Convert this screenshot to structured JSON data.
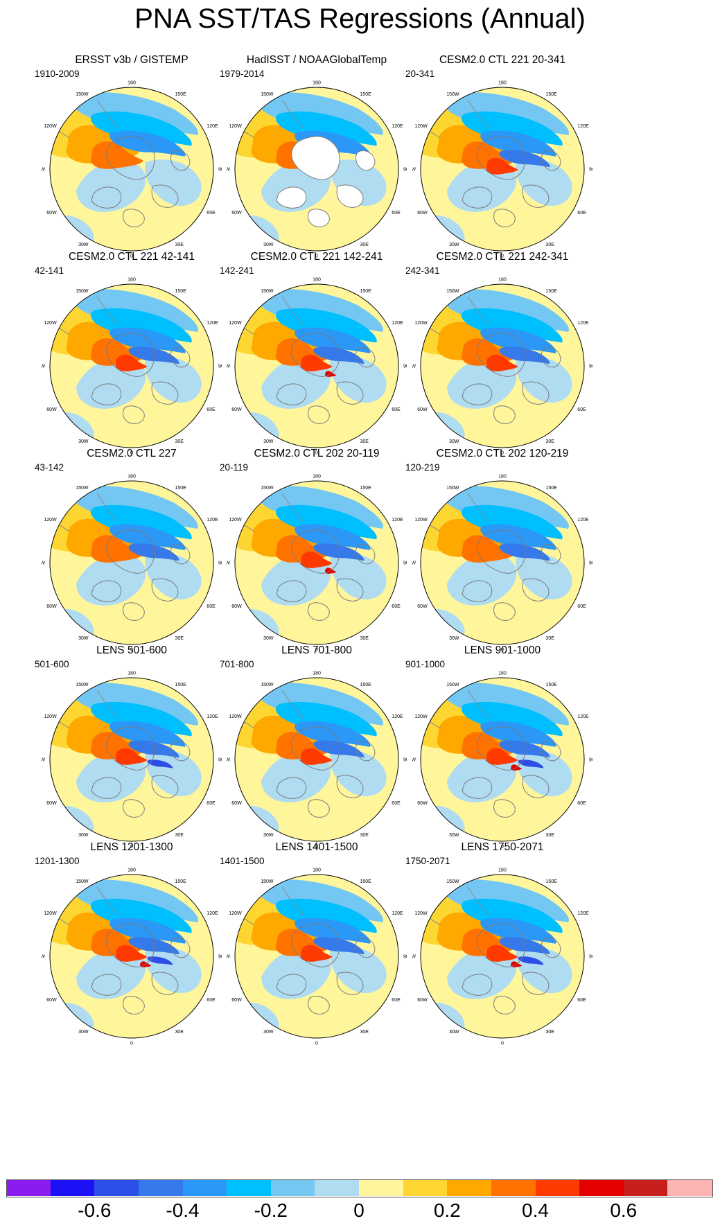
{
  "title": "PNA SST/TAS Regressions (Annual)",
  "chart_data": {
    "type": "heatmap",
    "description_units": "regression coefficient",
    "lon_labels": [
      "180",
      "150E",
      "120E",
      "90E",
      "60E",
      "30E",
      "0",
      "30W",
      "60W",
      "90W",
      "120W",
      "150W"
    ],
    "panels": [
      {
        "title": "ERSST v3b / GISTEMP",
        "period": "1910-2009",
        "pos_max": 0.35,
        "neg_max": -0.35,
        "mask_land": false
      },
      {
        "title": "HadISST / NOAAGlobalTemp",
        "period": "1979-2014",
        "pos_max": 0.35,
        "neg_max": -0.4,
        "mask_land": true
      },
      {
        "title": "CESM2.0 CTL 221 20-341",
        "period": "20-341",
        "pos_max": 0.45,
        "neg_max": -0.45,
        "mask_land": false
      },
      {
        "title": "CESM2.0 CTL 221 42-141",
        "period": "42-141",
        "pos_max": 0.45,
        "neg_max": -0.45,
        "mask_land": false
      },
      {
        "title": "CESM2.0 CTL 221 142-241",
        "period": "142-241",
        "pos_max": 0.55,
        "neg_max": -0.5,
        "mask_land": false
      },
      {
        "title": "CESM2.0 CTL 221 242-341",
        "period": "242-341",
        "pos_max": 0.45,
        "neg_max": -0.45,
        "mask_land": false
      },
      {
        "title": "CESM2.0 CTL 227",
        "period": "43-142",
        "pos_max": 0.35,
        "neg_max": -0.45,
        "mask_land": false
      },
      {
        "title": "CESM2.0 CTL 202 20-119",
        "period": "20-119",
        "pos_max": 0.55,
        "neg_max": -0.5,
        "mask_land": false
      },
      {
        "title": "CESM2.0 CTL 202 120-219",
        "period": "120-219",
        "pos_max": 0.4,
        "neg_max": -0.45,
        "mask_land": false
      },
      {
        "title": "LENS 501-600",
        "period": "501-600",
        "pos_max": 0.45,
        "neg_max": -0.6,
        "mask_land": false
      },
      {
        "title": "LENS 701-800",
        "period": "701-800",
        "pos_max": 0.45,
        "neg_max": -0.45,
        "mask_land": false
      },
      {
        "title": "LENS 901-1000",
        "period": "901-1000",
        "pos_max": 0.55,
        "neg_max": -0.6,
        "mask_land": false
      },
      {
        "title": "LENS 1201-1300",
        "period": "1201-1300",
        "pos_max": 0.55,
        "neg_max": -0.55,
        "mask_land": false
      },
      {
        "title": "LENS 1401-1500",
        "period": "1401-1500",
        "pos_max": 0.45,
        "neg_max": -0.5,
        "mask_land": false
      },
      {
        "title": "LENS 1750-2071",
        "period": "1750-2071",
        "pos_max": 0.55,
        "neg_max": -0.55,
        "mask_land": false
      }
    ],
    "colorbar": {
      "levels": [
        -0.7,
        -0.6,
        -0.5,
        -0.4,
        -0.3,
        -0.2,
        -0.1,
        0,
        0.1,
        0.2,
        0.3,
        0.4,
        0.5,
        0.6,
        0.7
      ],
      "colors": [
        "#8a1cf0",
        "#1c10f5",
        "#2e4ee8",
        "#3579ea",
        "#2b97f6",
        "#00bfff",
        "#74c7f2",
        "#b0dcf2",
        "#fff69b",
        "#fdd631",
        "#fea800",
        "#ff7200",
        "#ff3a00",
        "#e50000",
        "#c81e1e",
        "#ffb4b4"
      ],
      "tick_labels": [
        "-0.6",
        "-0.4",
        "-0.2",
        "0",
        "0.2",
        "0.4",
        "0.6"
      ],
      "tick_values": [
        -0.6,
        -0.4,
        -0.2,
        0,
        0.2,
        0.4,
        0.6
      ]
    }
  }
}
